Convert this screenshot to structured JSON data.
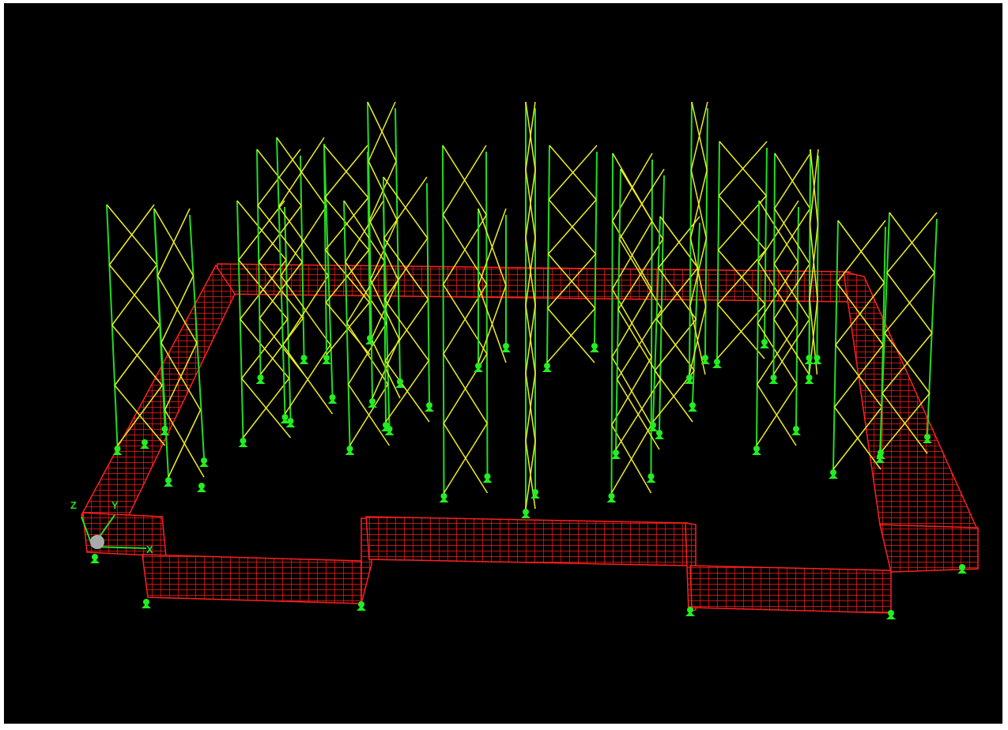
{
  "viewport": {
    "axes": {
      "z": "Z",
      "y": "Y",
      "x": "X"
    }
  }
}
